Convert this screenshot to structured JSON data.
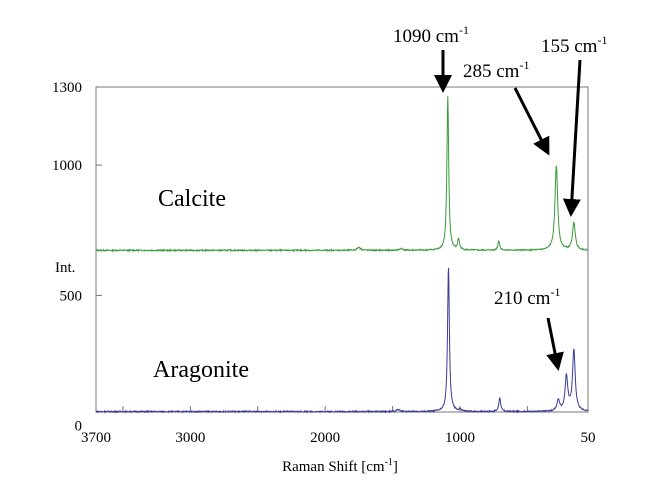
{
  "chart_data": {
    "type": "line",
    "xlabel": {
      "text": "Raman Shift [cm",
      "sup": "-1",
      "close": "]"
    },
    "ylabel": "Int.",
    "xlim": [
      3700,
      50
    ],
    "ylim": [
      0,
      1300
    ],
    "x_reversed": true,
    "xticks": [
      3700,
      3000,
      2000,
      1000,
      50
    ],
    "xminor_ticks": [
      3500,
      3000,
      2500,
      2000,
      1500,
      1000,
      500
    ],
    "yticks": [
      1300,
      1000,
      500,
      0
    ],
    "grid": false,
    "series": [
      {
        "name": "Calcite",
        "color": "#3a9a3a",
        "baseline": 673,
        "peaks": [
          {
            "x": 1090,
            "y": 1262
          },
          {
            "x": 1010,
            "y": 715
          },
          {
            "x": 712,
            "y": 710
          },
          {
            "x": 285,
            "y": 1000
          },
          {
            "x": 155,
            "y": 780
          },
          {
            "x": 1750,
            "y": 685
          },
          {
            "x": 1435,
            "y": 680
          }
        ]
      },
      {
        "name": "Aragonite",
        "color": "#3a3a9a",
        "baseline": 54,
        "peaks": [
          {
            "x": 1085,
            "y": 615
          },
          {
            "x": 1000,
            "y": 62
          },
          {
            "x": 705,
            "y": 108
          },
          {
            "x": 270,
            "y": 96
          },
          {
            "x": 210,
            "y": 188
          },
          {
            "x": 155,
            "y": 288
          },
          {
            "x": 1460,
            "y": 62
          }
        ]
      }
    ],
    "annotations": [
      {
        "text": "1090 cm",
        "sup": "-1"
      },
      {
        "text": "285 cm",
        "sup": "-1"
      },
      {
        "text": "155 cm",
        "sup": "-1"
      },
      {
        "text": "210 cm",
        "sup": "-1"
      }
    ]
  }
}
